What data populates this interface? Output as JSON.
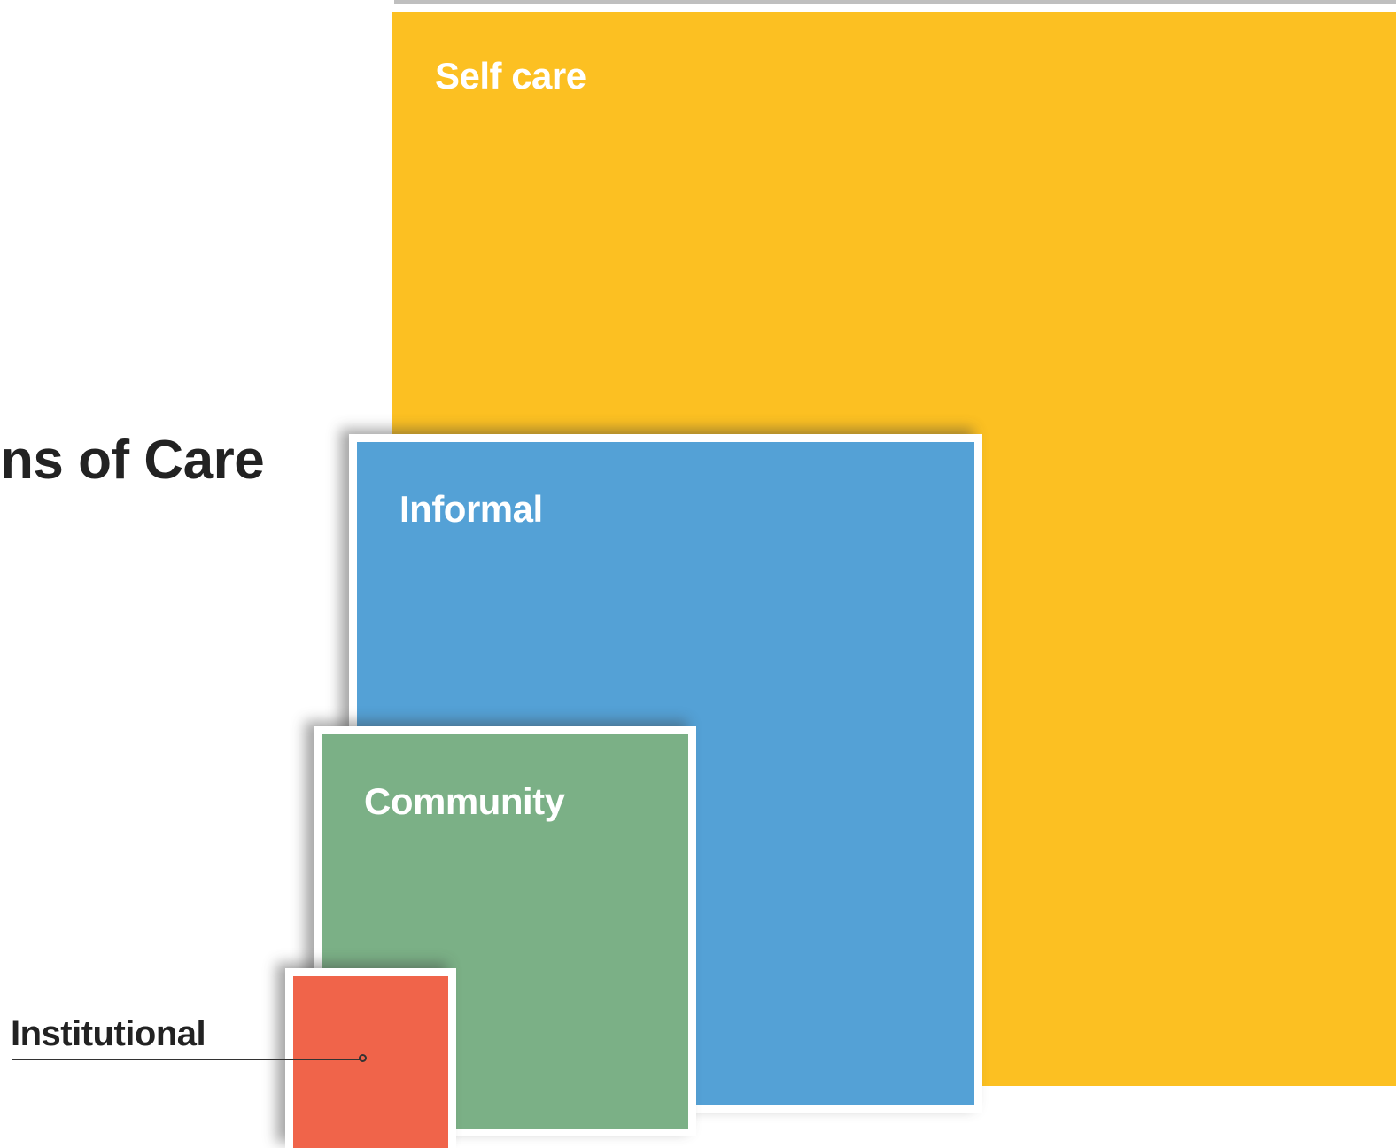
{
  "title_fragment": "ns of Care",
  "boxes": {
    "self_care": {
      "label": "Self care",
      "color": "#fcc022"
    },
    "informal": {
      "label": "Informal",
      "color": "#54a1d6"
    },
    "community": {
      "label": "Community",
      "color": "#7bb086"
    },
    "institutional": {
      "label": "Institutional",
      "color": "#f0644a"
    }
  }
}
